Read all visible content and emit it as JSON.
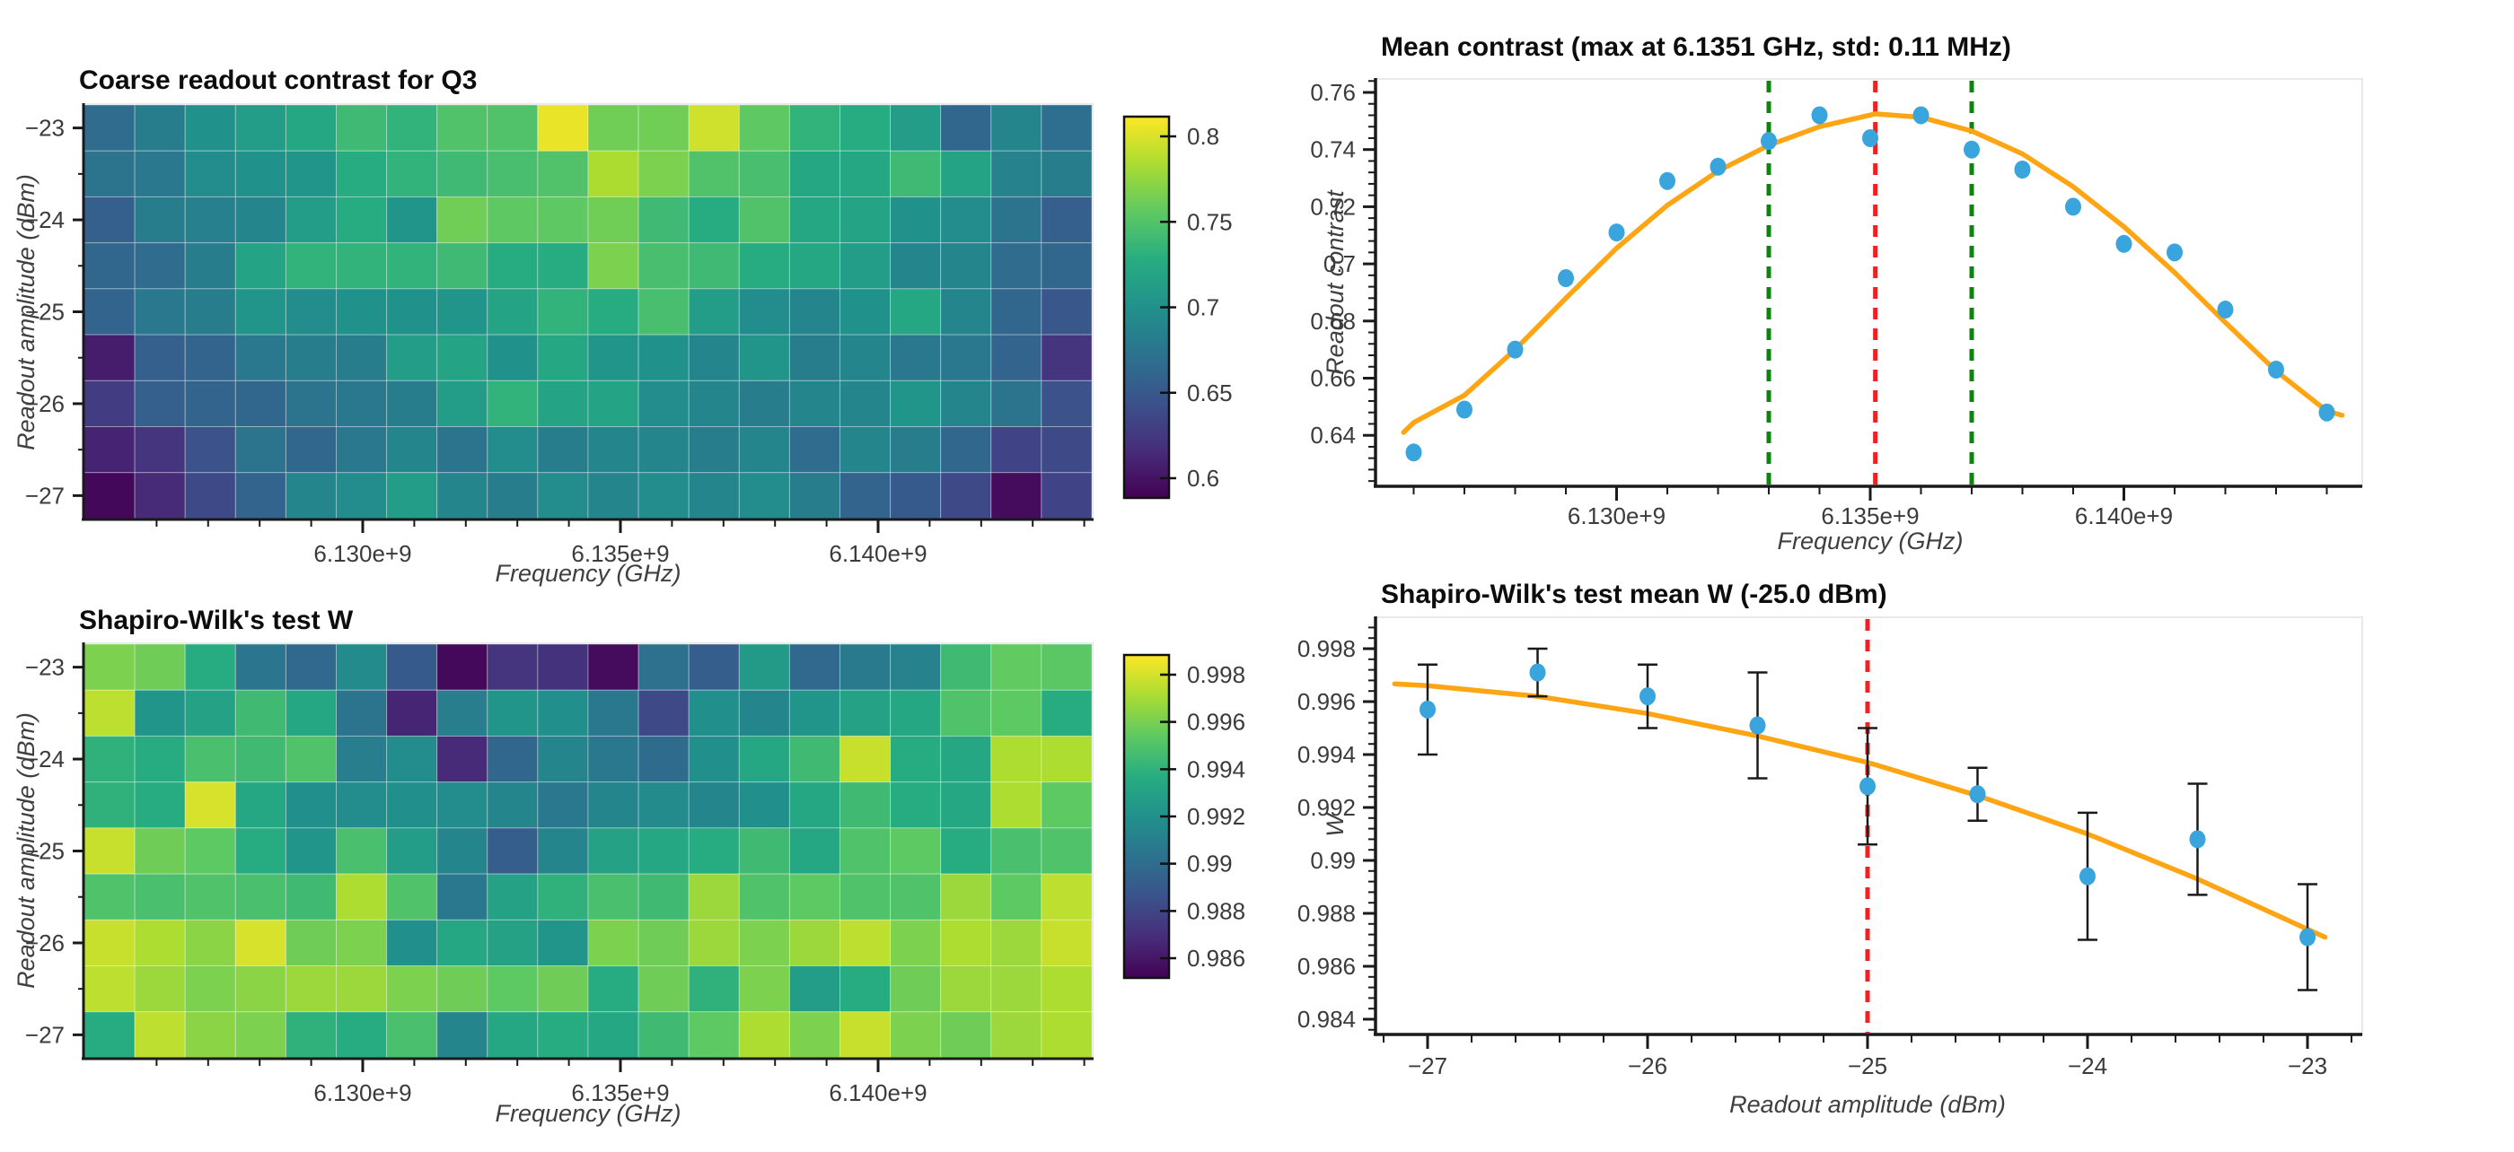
{
  "figure": {
    "background": "#ffffff",
    "accent_colors": {
      "point_blue": "#3AA5DC",
      "fit_orange": "#FFA513",
      "vline_red": "#EE2222",
      "vline_green": "#0E840E",
      "errorbar_black": "#1a1a1a",
      "spine_black": "#1a1a1a",
      "frame_gray": "#e8e8e8",
      "tick_text": "#3b3b3b"
    }
  },
  "panels": {
    "heatmap_contrast": {
      "title": "Coarse readout contrast for Q3",
      "xlabel": "Frequency (GHz)",
      "ylabel": "Readout amplitude (dBm)"
    },
    "mean_contrast": {
      "title": "Mean contrast (max at 6.1351 GHz, std: 0.11 MHz)",
      "xlabel": "Frequency (GHz)",
      "ylabel": "Readout contrast"
    },
    "heatmap_shapiro": {
      "title": "Shapiro-Wilk's test W",
      "xlabel": "Frequency (GHz)",
      "ylabel": "Readout amplitude (dBm)"
    },
    "shapiro_mean": {
      "title": "Shapiro-Wilk's test mean W (-25.0 dBm)",
      "xlabel": "Readout amplitude (dBm)",
      "ylabel": "W"
    }
  },
  "chart_data": [
    {
      "id": "heatmap_contrast",
      "type": "heatmap",
      "title": "Coarse readout contrast for Q3",
      "xlabel": "Frequency (GHz)",
      "ylabel": "Readout amplitude (dBm)",
      "columns_ghz": [
        6.125,
        6.126,
        6.127,
        6.128,
        6.129,
        6.13,
        6.131,
        6.132,
        6.133,
        6.134,
        6.135,
        6.136,
        6.137,
        6.138,
        6.139,
        6.14,
        6.141,
        6.142,
        6.143,
        6.144
      ],
      "rows_dbm": [
        -23,
        -23.5,
        -24,
        -24.5,
        -25,
        -25.5,
        -26,
        -26.5,
        -27
      ],
      "vmin": 0.6,
      "vmax": 0.8,
      "x_tick_values": [
        6.13,
        6.135,
        6.14
      ],
      "x_tick_labels": [
        "6.130e+9",
        "6.135e+9",
        "6.140e+9"
      ],
      "y_tick_values": [
        -23,
        -24,
        -25,
        -26,
        -27
      ],
      "y_tick_labels": [
        "−23",
        "−24",
        "−25",
        "−26",
        "−27"
      ],
      "colorbar_tick_labels": [
        "0.8",
        "0.75",
        "0.7",
        "0.65",
        "0.6"
      ],
      "values": [
        [
          0.67,
          0.684,
          0.7,
          0.71,
          0.72,
          0.736,
          0.73,
          0.744,
          0.744,
          0.794,
          0.756,
          0.756,
          0.786,
          0.75,
          0.73,
          0.724,
          0.71,
          0.666,
          0.69,
          0.672
        ],
        [
          0.676,
          0.68,
          0.696,
          0.7,
          0.704,
          0.724,
          0.73,
          0.736,
          0.74,
          0.744,
          0.776,
          0.76,
          0.744,
          0.74,
          0.72,
          0.72,
          0.736,
          0.716,
          0.688,
          0.684
        ],
        [
          0.66,
          0.684,
          0.686,
          0.69,
          0.71,
          0.724,
          0.704,
          0.756,
          0.75,
          0.75,
          0.756,
          0.736,
          0.724,
          0.744,
          0.72,
          0.716,
          0.7,
          0.696,
          0.676,
          0.66
        ],
        [
          0.666,
          0.67,
          0.684,
          0.716,
          0.73,
          0.73,
          0.73,
          0.736,
          0.724,
          0.724,
          0.76,
          0.74,
          0.736,
          0.724,
          0.72,
          0.71,
          0.69,
          0.69,
          0.67,
          0.666
        ],
        [
          0.664,
          0.68,
          0.684,
          0.704,
          0.696,
          0.7,
          0.7,
          0.704,
          0.716,
          0.73,
          0.724,
          0.74,
          0.71,
          0.696,
          0.69,
          0.7,
          0.72,
          0.69,
          0.666,
          0.654
        ],
        [
          0.616,
          0.66,
          0.664,
          0.68,
          0.684,
          0.684,
          0.71,
          0.716,
          0.7,
          0.72,
          0.704,
          0.7,
          0.69,
          0.704,
          0.684,
          0.69,
          0.68,
          0.68,
          0.664,
          0.63
        ],
        [
          0.636,
          0.66,
          0.664,
          0.666,
          0.676,
          0.68,
          0.684,
          0.71,
          0.73,
          0.716,
          0.716,
          0.696,
          0.69,
          0.684,
          0.69,
          0.69,
          0.704,
          0.69,
          0.676,
          0.65
        ],
        [
          0.62,
          0.63,
          0.65,
          0.676,
          0.666,
          0.68,
          0.69,
          0.676,
          0.696,
          0.684,
          0.69,
          0.69,
          0.684,
          0.69,
          0.67,
          0.69,
          0.684,
          0.666,
          0.64,
          0.644
        ],
        [
          0.604,
          0.624,
          0.644,
          0.664,
          0.69,
          0.696,
          0.71,
          0.69,
          0.684,
          0.696,
          0.69,
          0.696,
          0.69,
          0.696,
          0.684,
          0.664,
          0.656,
          0.644,
          0.606,
          0.64
        ]
      ]
    },
    {
      "id": "mean_contrast",
      "type": "scatter",
      "title": "Mean contrast (max at 6.1351 GHz, std: 0.11 MHz)",
      "xlabel": "Frequency (GHz)",
      "ylabel": "Readout contrast",
      "x_ghz": [
        6.126,
        6.127,
        6.128,
        6.129,
        6.13,
        6.131,
        6.132,
        6.133,
        6.134,
        6.135,
        6.136,
        6.137,
        6.138,
        6.139,
        6.14,
        6.141,
        6.142,
        6.143,
        6.144
      ],
      "y": [
        0.634,
        0.649,
        0.67,
        0.695,
        0.711,
        0.729,
        0.734,
        0.743,
        0.752,
        0.744,
        0.752,
        0.74,
        0.733,
        0.72,
        0.707,
        0.704,
        0.684,
        0.663,
        0.648
      ],
      "fit_curve": [
        [
          6.1258,
          0.641
        ],
        [
          6.126,
          0.6445
        ],
        [
          6.127,
          0.654
        ],
        [
          6.128,
          0.67
        ],
        [
          6.129,
          0.688
        ],
        [
          6.13,
          0.7055
        ],
        [
          6.131,
          0.7205
        ],
        [
          6.132,
          0.7325
        ],
        [
          6.133,
          0.7415
        ],
        [
          6.134,
          0.748
        ],
        [
          6.1351,
          0.7525
        ],
        [
          6.136,
          0.7513
        ],
        [
          6.137,
          0.7465
        ],
        [
          6.138,
          0.7385
        ],
        [
          6.139,
          0.727
        ],
        [
          6.14,
          0.713
        ],
        [
          6.141,
          0.697
        ],
        [
          6.142,
          0.6795
        ],
        [
          6.143,
          0.6625
        ],
        [
          6.144,
          0.6485
        ],
        [
          6.1443,
          0.647
        ]
      ],
      "vlines": [
        {
          "x_ghz": 6.133,
          "color_key": "vline_green"
        },
        {
          "x_ghz": 6.1351,
          "color_key": "vline_red"
        },
        {
          "x_ghz": 6.137,
          "color_key": "vline_green"
        }
      ],
      "x_tick_values": [
        6.13,
        6.135,
        6.14
      ],
      "x_tick_labels": [
        "6.130e+9",
        "6.135e+9",
        "6.140e+9"
      ],
      "y_tick_values": [
        0.76,
        0.74,
        0.72,
        0.7,
        0.68,
        0.66,
        0.64
      ],
      "y_tick_labels": [
        "0.76",
        "0.74",
        "0.72",
        "0.7",
        "0.68",
        "0.66",
        "0.64"
      ],
      "ylim": [
        0.6218,
        0.7647
      ],
      "xlim_ghz": [
        6.12525,
        6.14495
      ]
    },
    {
      "id": "heatmap_shapiro",
      "type": "heatmap",
      "title": "Shapiro-Wilk's test W",
      "xlabel": "Frequency (GHz)",
      "ylabel": "Readout amplitude (dBm)",
      "columns_ghz": [
        6.125,
        6.126,
        6.127,
        6.128,
        6.129,
        6.13,
        6.131,
        6.132,
        6.133,
        6.134,
        6.135,
        6.136,
        6.137,
        6.138,
        6.139,
        6.14,
        6.141,
        6.142,
        6.143,
        6.144
      ],
      "rows_dbm": [
        -23,
        -23.5,
        -24,
        -24.5,
        -25,
        -25.5,
        -26,
        -26.5,
        -27
      ],
      "vmin": 0.9853,
      "vmax": 0.9988,
      "x_tick_values": [
        6.13,
        6.135,
        6.14
      ],
      "x_tick_labels": [
        "6.130e+9",
        "6.135e+9",
        "6.140e+9"
      ],
      "y_tick_values": [
        -23,
        -24,
        -25,
        -26,
        -27
      ],
      "y_tick_labels": [
        "−23",
        "−24",
        "−25",
        "−26",
        "−27"
      ],
      "colorbar_tick_labels": [
        "0.998",
        "0.996",
        "0.994",
        "0.992",
        "0.99",
        "0.988",
        "0.986"
      ],
      "values": [
        [
          0.9961,
          0.9958,
          0.9937,
          0.9905,
          0.9899,
          0.9917,
          0.9891,
          0.9856,
          0.9873,
          0.9872,
          0.9857,
          0.9903,
          0.9893,
          0.9926,
          0.9899,
          0.9908,
          0.9913,
          0.9945,
          0.9955,
          0.9953
        ],
        [
          0.9975,
          0.9923,
          0.9931,
          0.9945,
          0.9934,
          0.9904,
          0.9867,
          0.991,
          0.9923,
          0.992,
          0.9907,
          0.9883,
          0.992,
          0.9914,
          0.9923,
          0.9931,
          0.9934,
          0.995,
          0.9954,
          0.9937
        ],
        [
          0.994,
          0.9937,
          0.9948,
          0.9945,
          0.995,
          0.991,
          0.9918,
          0.9869,
          0.9898,
          0.9914,
          0.9907,
          0.99,
          0.992,
          0.9934,
          0.9945,
          0.9977,
          0.9937,
          0.9934,
          0.9972,
          0.9972
        ],
        [
          0.994,
          0.9937,
          0.998,
          0.9934,
          0.992,
          0.9918,
          0.992,
          0.9918,
          0.9914,
          0.9907,
          0.9914,
          0.9917,
          0.9914,
          0.992,
          0.9934,
          0.9945,
          0.9937,
          0.9934,
          0.9972,
          0.9954
        ],
        [
          0.9977,
          0.9958,
          0.9954,
          0.9937,
          0.9923,
          0.9948,
          0.9927,
          0.9914,
          0.9893,
          0.9914,
          0.9931,
          0.9934,
          0.9937,
          0.9945,
          0.9934,
          0.995,
          0.9954,
          0.9937,
          0.9948,
          0.995
        ],
        [
          0.995,
          0.9948,
          0.995,
          0.9948,
          0.9945,
          0.9972,
          0.995,
          0.9907,
          0.9931,
          0.994,
          0.9948,
          0.9945,
          0.9968,
          0.995,
          0.9954,
          0.995,
          0.995,
          0.9968,
          0.9954,
          0.9975
        ],
        [
          0.9977,
          0.9972,
          0.9964,
          0.998,
          0.9958,
          0.9961,
          0.992,
          0.9934,
          0.9931,
          0.9923,
          0.9961,
          0.9958,
          0.9968,
          0.9961,
          0.9968,
          0.9975,
          0.9961,
          0.9972,
          0.9968,
          0.9977
        ],
        [
          0.9975,
          0.9968,
          0.9961,
          0.9964,
          0.9968,
          0.9968,
          0.9961,
          0.9958,
          0.9954,
          0.9958,
          0.9937,
          0.9958,
          0.994,
          0.9961,
          0.9927,
          0.9937,
          0.9958,
          0.9968,
          0.9968,
          0.9972
        ],
        [
          0.9937,
          0.9975,
          0.9964,
          0.9961,
          0.994,
          0.9937,
          0.9948,
          0.9914,
          0.9934,
          0.9937,
          0.9934,
          0.9945,
          0.9954,
          0.9972,
          0.9961,
          0.9977,
          0.9961,
          0.9958,
          0.9968,
          0.9972
        ]
      ]
    },
    {
      "id": "shapiro_mean",
      "type": "scatter-errorbar",
      "title": "Shapiro-Wilk's test mean W (-25.0 dBm)",
      "xlabel": "Readout amplitude (dBm)",
      "ylabel": "W",
      "x_dbm": [
        -27,
        -26.5,
        -26,
        -25.5,
        -25,
        -24.5,
        -24,
        -23.5,
        -23
      ],
      "y": [
        0.9957,
        0.9971,
        0.9962,
        0.9951,
        0.9928,
        0.9925,
        0.9894,
        0.9908,
        0.9871
      ],
      "yerr": [
        0.0017,
        0.0009,
        0.0012,
        0.002,
        0.0022,
        0.001,
        0.0024,
        0.0021,
        0.002
      ],
      "fit_curve": [
        [
          -27.15,
          0.99667
        ],
        [
          -27,
          0.9966
        ],
        [
          -26.5,
          0.9962
        ],
        [
          -26,
          0.99555
        ],
        [
          -25.5,
          0.9947
        ],
        [
          -25,
          0.9937
        ],
        [
          -24.5,
          0.99245
        ],
        [
          -24,
          0.991
        ],
        [
          -23.5,
          0.9893
        ],
        [
          -23,
          0.9874
        ],
        [
          -22.92,
          0.9871
        ]
      ],
      "vlines": [
        {
          "x_dbm": -25,
          "color_key": "vline_red"
        }
      ],
      "x_tick_values": [
        -27,
        -26,
        -25,
        -24,
        -23
      ],
      "x_tick_labels": [
        "−27",
        "−26",
        "−25",
        "−24",
        "−23"
      ],
      "y_tick_values": [
        0.998,
        0.996,
        0.994,
        0.992,
        0.99,
        0.988,
        0.986,
        0.984
      ],
      "y_tick_labels": [
        "0.998",
        "0.996",
        "0.994",
        "0.992",
        "0.99",
        "0.988",
        "0.986",
        "0.984"
      ],
      "ylim": [
        0.98342,
        0.99919
      ],
      "xlim_dbm": [
        -27.27,
        -22.75
      ]
    }
  ]
}
